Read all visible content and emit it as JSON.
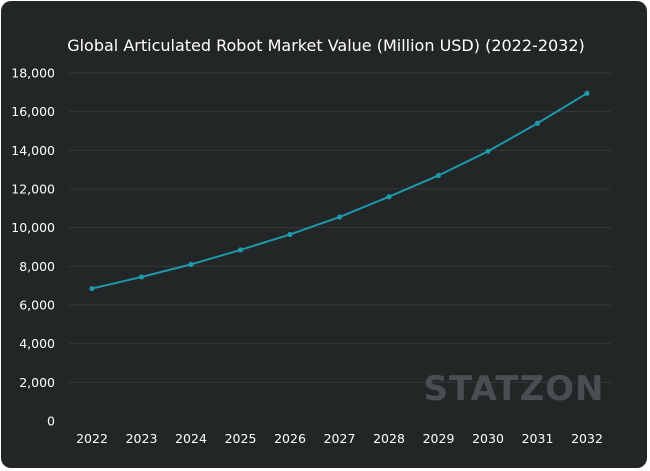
{
  "chart_data": {
    "type": "line",
    "title": "Global Articulated Robot Market Value (Million USD) (2022-2032)",
    "xlabel": "",
    "ylabel": "",
    "categories": [
      "2022",
      "2023",
      "2024",
      "2025",
      "2026",
      "2027",
      "2028",
      "2029",
      "2030",
      "2031",
      "2032"
    ],
    "series": [
      {
        "values": [
          6850,
          7450,
          8100,
          8850,
          9650,
          10550,
          11600,
          12700,
          13950,
          15400,
          16950
        ]
      }
    ],
    "ylim": [
      0,
      18000
    ],
    "yticks": [
      0,
      2000,
      4000,
      6000,
      8000,
      10000,
      12000,
      14000,
      16000,
      18000
    ],
    "ytick_labels": [
      "0",
      "2,000",
      "4,000",
      "6,000",
      "8,000",
      "10,000",
      "12,000",
      "14,000",
      "16,000",
      "18,000"
    ],
    "grid": true,
    "legend": "none",
    "colors": {
      "background": "#232627",
      "line": "#1e98ab",
      "grid": "#34383a",
      "text": "#ffffff"
    }
  },
  "watermark": "STATZON"
}
